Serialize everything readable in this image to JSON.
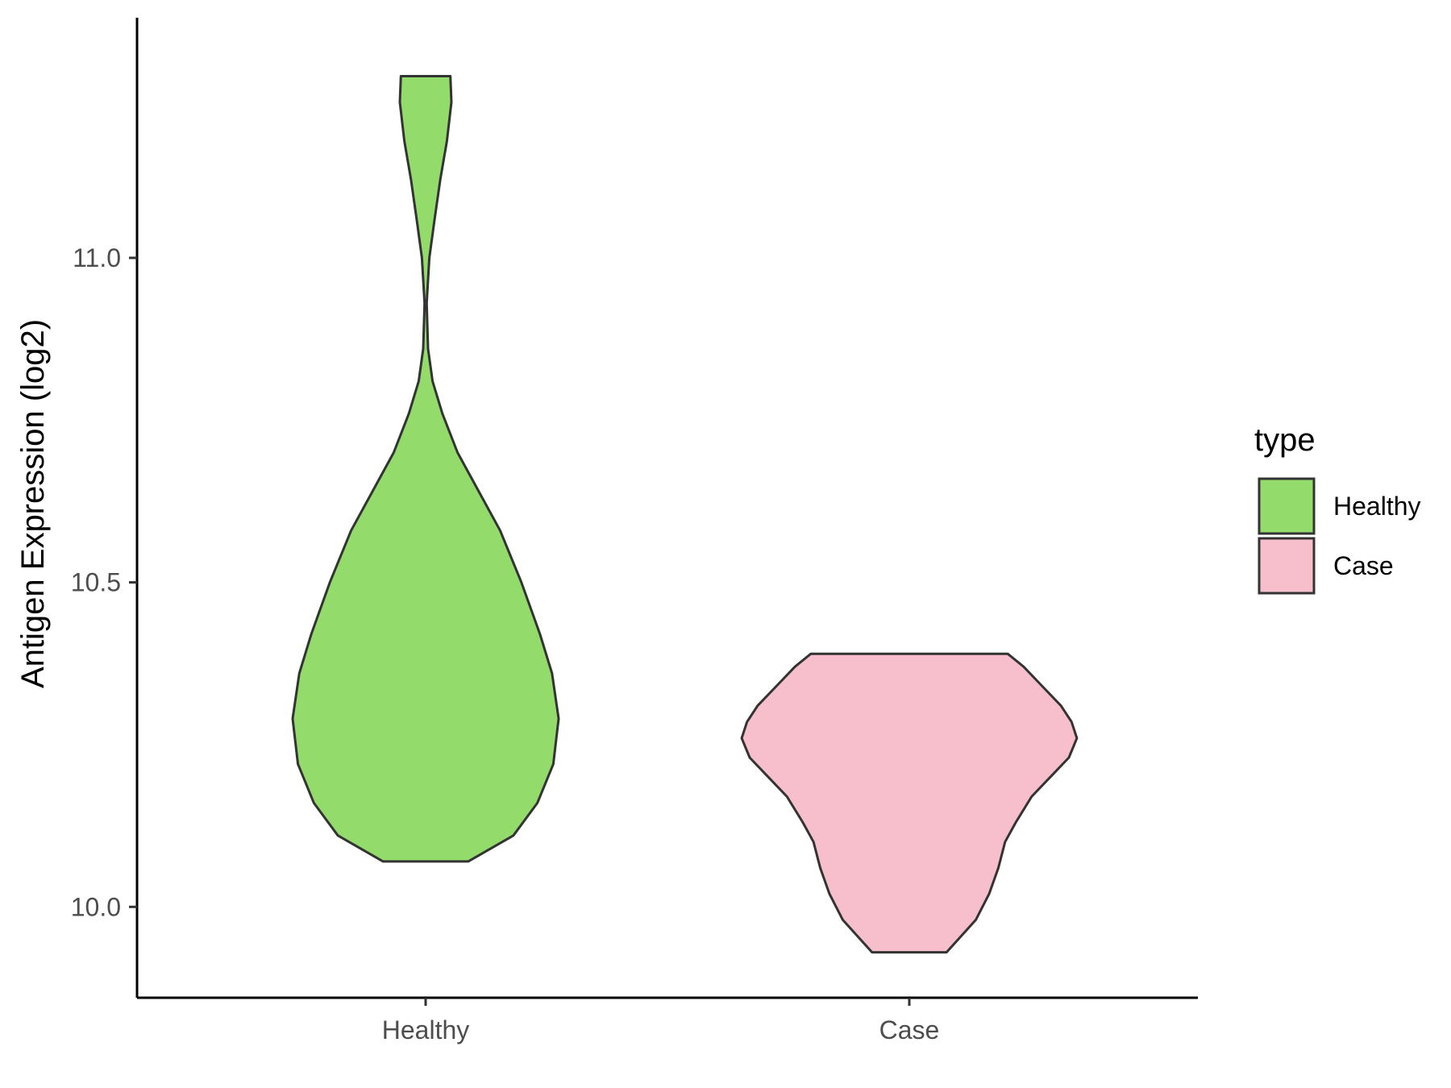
{
  "chart_data": {
    "type": "violin",
    "title": "",
    "xlabel": "",
    "ylabel": "Antigen Expression (log2)",
    "ylim": [
      9.86,
      11.37
    ],
    "y_ticks": [
      "10.0",
      "10.5",
      "11.0"
    ],
    "categories": [
      "Healthy",
      "Case"
    ],
    "grid": false,
    "legend": {
      "title": "type",
      "position": "right",
      "items": [
        {
          "label": "Healthy",
          "color": "#93DB6A"
        },
        {
          "label": "Case",
          "color": "#F7BFCB"
        }
      ]
    },
    "series": [
      {
        "category": "Healthy",
        "color": "#93DB6A",
        "min": 10.07,
        "max": 11.28,
        "density": [
          [
            11.28,
            0.093
          ],
          [
            11.24,
            0.097
          ],
          [
            11.18,
            0.08
          ],
          [
            11.12,
            0.055
          ],
          [
            11.06,
            0.034
          ],
          [
            11.0,
            0.014
          ],
          [
            10.93,
            0.004
          ],
          [
            10.86,
            0.009
          ],
          [
            10.81,
            0.026
          ],
          [
            10.76,
            0.063
          ],
          [
            10.7,
            0.12
          ],
          [
            10.64,
            0.2
          ],
          [
            10.58,
            0.28
          ],
          [
            10.5,
            0.36
          ],
          [
            10.42,
            0.43
          ],
          [
            10.36,
            0.475
          ],
          [
            10.29,
            0.5
          ],
          [
            10.22,
            0.48
          ],
          [
            10.16,
            0.42
          ],
          [
            10.11,
            0.33
          ],
          [
            10.07,
            0.16
          ]
        ]
      },
      {
        "category": "Case",
        "color": "#F7BFCB",
        "min": 9.93,
        "max": 10.39,
        "density": [
          [
            10.39,
            0.37
          ],
          [
            10.37,
            0.43
          ],
          [
            10.34,
            0.5
          ],
          [
            10.31,
            0.57
          ],
          [
            10.285,
            0.61
          ],
          [
            10.26,
            0.63
          ],
          [
            10.23,
            0.6
          ],
          [
            10.2,
            0.53
          ],
          [
            10.17,
            0.46
          ],
          [
            10.13,
            0.4
          ],
          [
            10.1,
            0.36
          ],
          [
            10.06,
            0.335
          ],
          [
            10.02,
            0.3
          ],
          [
            9.98,
            0.25
          ],
          [
            9.93,
            0.14
          ]
        ]
      }
    ]
  }
}
